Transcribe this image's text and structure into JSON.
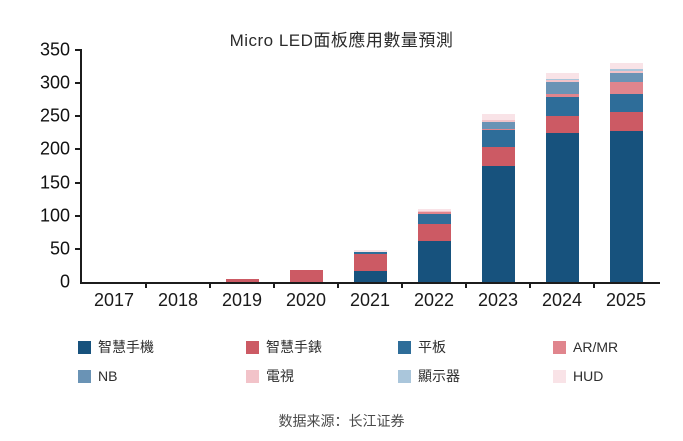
{
  "title": "Micro LED面板應用數量預測",
  "caption": "数据来源：长江证券",
  "chart_data": {
    "type": "bar",
    "stacked": true,
    "title": "Micro LED面板應用數量預測",
    "xlabel": "",
    "ylabel": "",
    "ylim": [
      0,
      350
    ],
    "yticks": [
      0,
      50,
      100,
      150,
      200,
      250,
      300,
      350
    ],
    "grid": false,
    "legend_position": "bottom",
    "categories": [
      "2017",
      "2018",
      "2019",
      "2020",
      "2021",
      "2022",
      "2023",
      "2024",
      "2025"
    ],
    "series": [
      {
        "name": "智慧手機",
        "color": "#17527d",
        "values": [
          0,
          0,
          0,
          0,
          16,
          62,
          175,
          225,
          228
        ]
      },
      {
        "name": "智慧手錶",
        "color": "#cc5a64",
        "values": [
          0,
          0,
          5,
          18,
          27,
          25,
          28,
          26,
          28
        ]
      },
      {
        "name": "平板",
        "color": "#2e6d99",
        "values": [
          0,
          0,
          0,
          0,
          3,
          15,
          26,
          28,
          28
        ]
      },
      {
        "name": "AR/MR",
        "color": "#e0858d",
        "values": [
          0,
          0,
          0,
          0,
          0,
          3,
          2,
          5,
          18
        ]
      },
      {
        "name": "NB",
        "color": "#6a93b5",
        "values": [
          0,
          0,
          0,
          0,
          0,
          0,
          11,
          18,
          14
        ]
      },
      {
        "name": "電視",
        "color": "#f2c3c9",
        "values": [
          0,
          0,
          0,
          0,
          0,
          2,
          2,
          3,
          3
        ]
      },
      {
        "name": "顯示器",
        "color": "#aac6db",
        "values": [
          0,
          0,
          0,
          0,
          0,
          0,
          1,
          2,
          2
        ]
      },
      {
        "name": "HUD",
        "color": "#f9e3e7",
        "values": [
          0,
          0,
          0,
          0,
          2,
          3,
          8,
          8,
          9
        ]
      }
    ]
  }
}
